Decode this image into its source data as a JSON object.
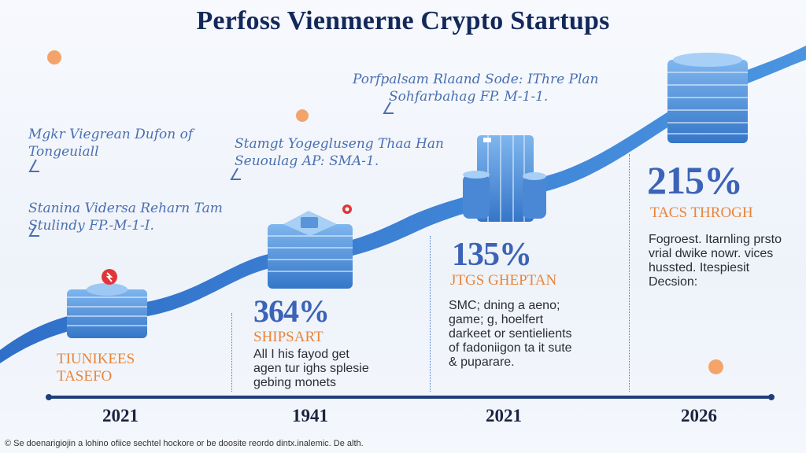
{
  "title": "Perfoss Vienmerne Crypto Startups",
  "notes": [
    {
      "line1": "Mgkr Viegrean Dufon of",
      "line2": "Tongeuiall"
    },
    {
      "line1": "Stanina Vidersa Reharn Tam",
      "line2": "Stulindy FP.-M-1-I."
    },
    {
      "line1": "Stamgt Yogegluseng Thaa Han",
      "line2": "Seuoulag AP: SMA-1."
    },
    {
      "line1": "Porfpalsam Rlaand Sode: IThre Plan",
      "line2": "Sohfarbahag FP. M-1-1."
    }
  ],
  "milestones": [
    {
      "year": "2021",
      "percent": "",
      "label1": "TIUNIKEES",
      "label2": "TASEFO",
      "description": []
    },
    {
      "year": "1941",
      "percent": "364%",
      "label1": "SHIPSART",
      "label2": "",
      "description": [
        "All I his fayod get",
        "agen tur ighs splesie",
        "gebing monets"
      ]
    },
    {
      "year": "2021",
      "percent": "135%",
      "label1": "JTGS GHEPTAN",
      "label2": "",
      "description": [
        "SMC; dning a aeno;",
        "game; g, hoelfert",
        "darkeet or sentielients",
        "of fadoniigon ta it sute",
        "& puparare."
      ]
    },
    {
      "year": "2026",
      "percent": "215%",
      "label1": "TACS THROGH",
      "label2": "",
      "description": [
        "Fogroest. Itarnling prsto",
        "vrial dwike nowr. vices",
        "hussted. Itespiesit",
        "Decsion:"
      ]
    }
  ],
  "footer": "© Se doenarigiojin a lohino ofiice sechtel hockore or be doosite reordo dintx.inalemic. De alth.",
  "colors": {
    "title": "#13285a",
    "accent_blue": "#3b63b8",
    "wave_blue": "#3f82d4",
    "orange": "#e8853a",
    "timeline": "#1f3f7a"
  }
}
